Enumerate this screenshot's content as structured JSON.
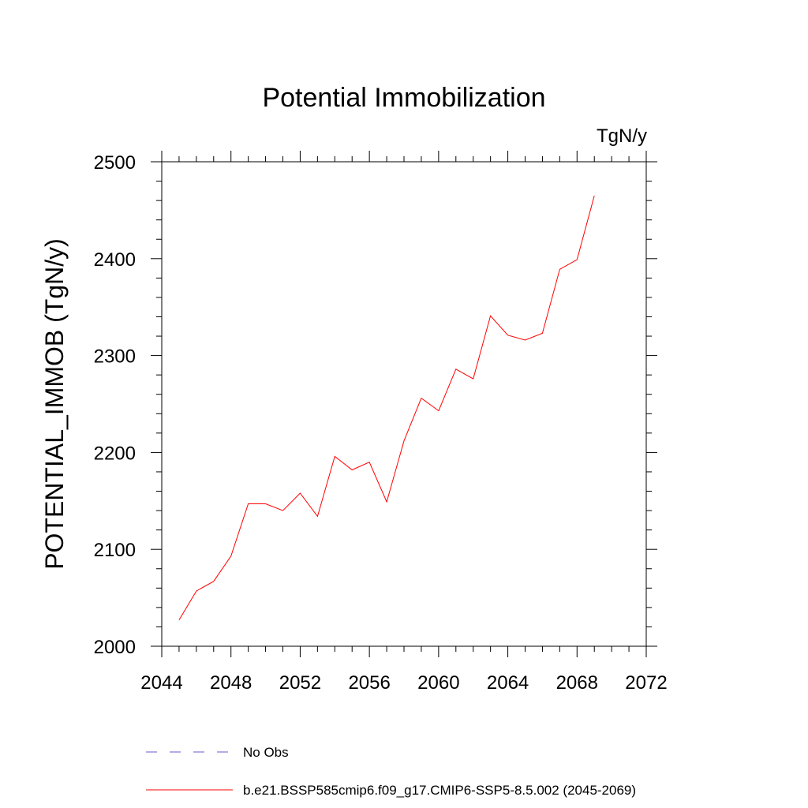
{
  "chart_data": {
    "type": "line",
    "title": "Potential Immobilization",
    "units_label": "TgN/y",
    "ylabel": "POTENTIAL_IMMOB  (TgN/y)",
    "xlabel": "",
    "xlim": [
      2044,
      2072
    ],
    "ylim": [
      2000,
      2500
    ],
    "x_ticks": [
      2044,
      2048,
      2052,
      2056,
      2060,
      2064,
      2068,
      2072
    ],
    "y_ticks": [
      2000,
      2100,
      2200,
      2300,
      2400,
      2500
    ],
    "grid": false,
    "legend_position": "bottom",
    "series": [
      {
        "name": "b.e21.BSSP585cmip6.f09_g17.CMIP6-SSP5-8.5.002 (2045-2069)",
        "color": "#ff0000",
        "style": "solid",
        "x": [
          2045,
          2046,
          2047,
          2048,
          2049,
          2050,
          2051,
          2052,
          2053,
          2054,
          2055,
          2056,
          2057,
          2058,
          2059,
          2060,
          2061,
          2062,
          2063,
          2064,
          2065,
          2066,
          2067,
          2068,
          2069
        ],
        "y": [
          2027,
          2057,
          2067,
          2093,
          2147,
          2147,
          2140,
          2158,
          2134,
          2196,
          2182,
          2190,
          2149,
          2212,
          2256,
          2243,
          2286,
          2276,
          2341,
          2321,
          2316,
          2323,
          2389,
          2399,
          2465
        ]
      }
    ],
    "legend": [
      {
        "label": "No Obs",
        "color": "#6a5acd",
        "style": "dashed"
      },
      {
        "label": "b.e21.BSSP585cmip6.f09_g17.CMIP6-SSP5-8.5.002 (2045-2069)",
        "color": "#ff0000",
        "style": "solid"
      }
    ]
  }
}
